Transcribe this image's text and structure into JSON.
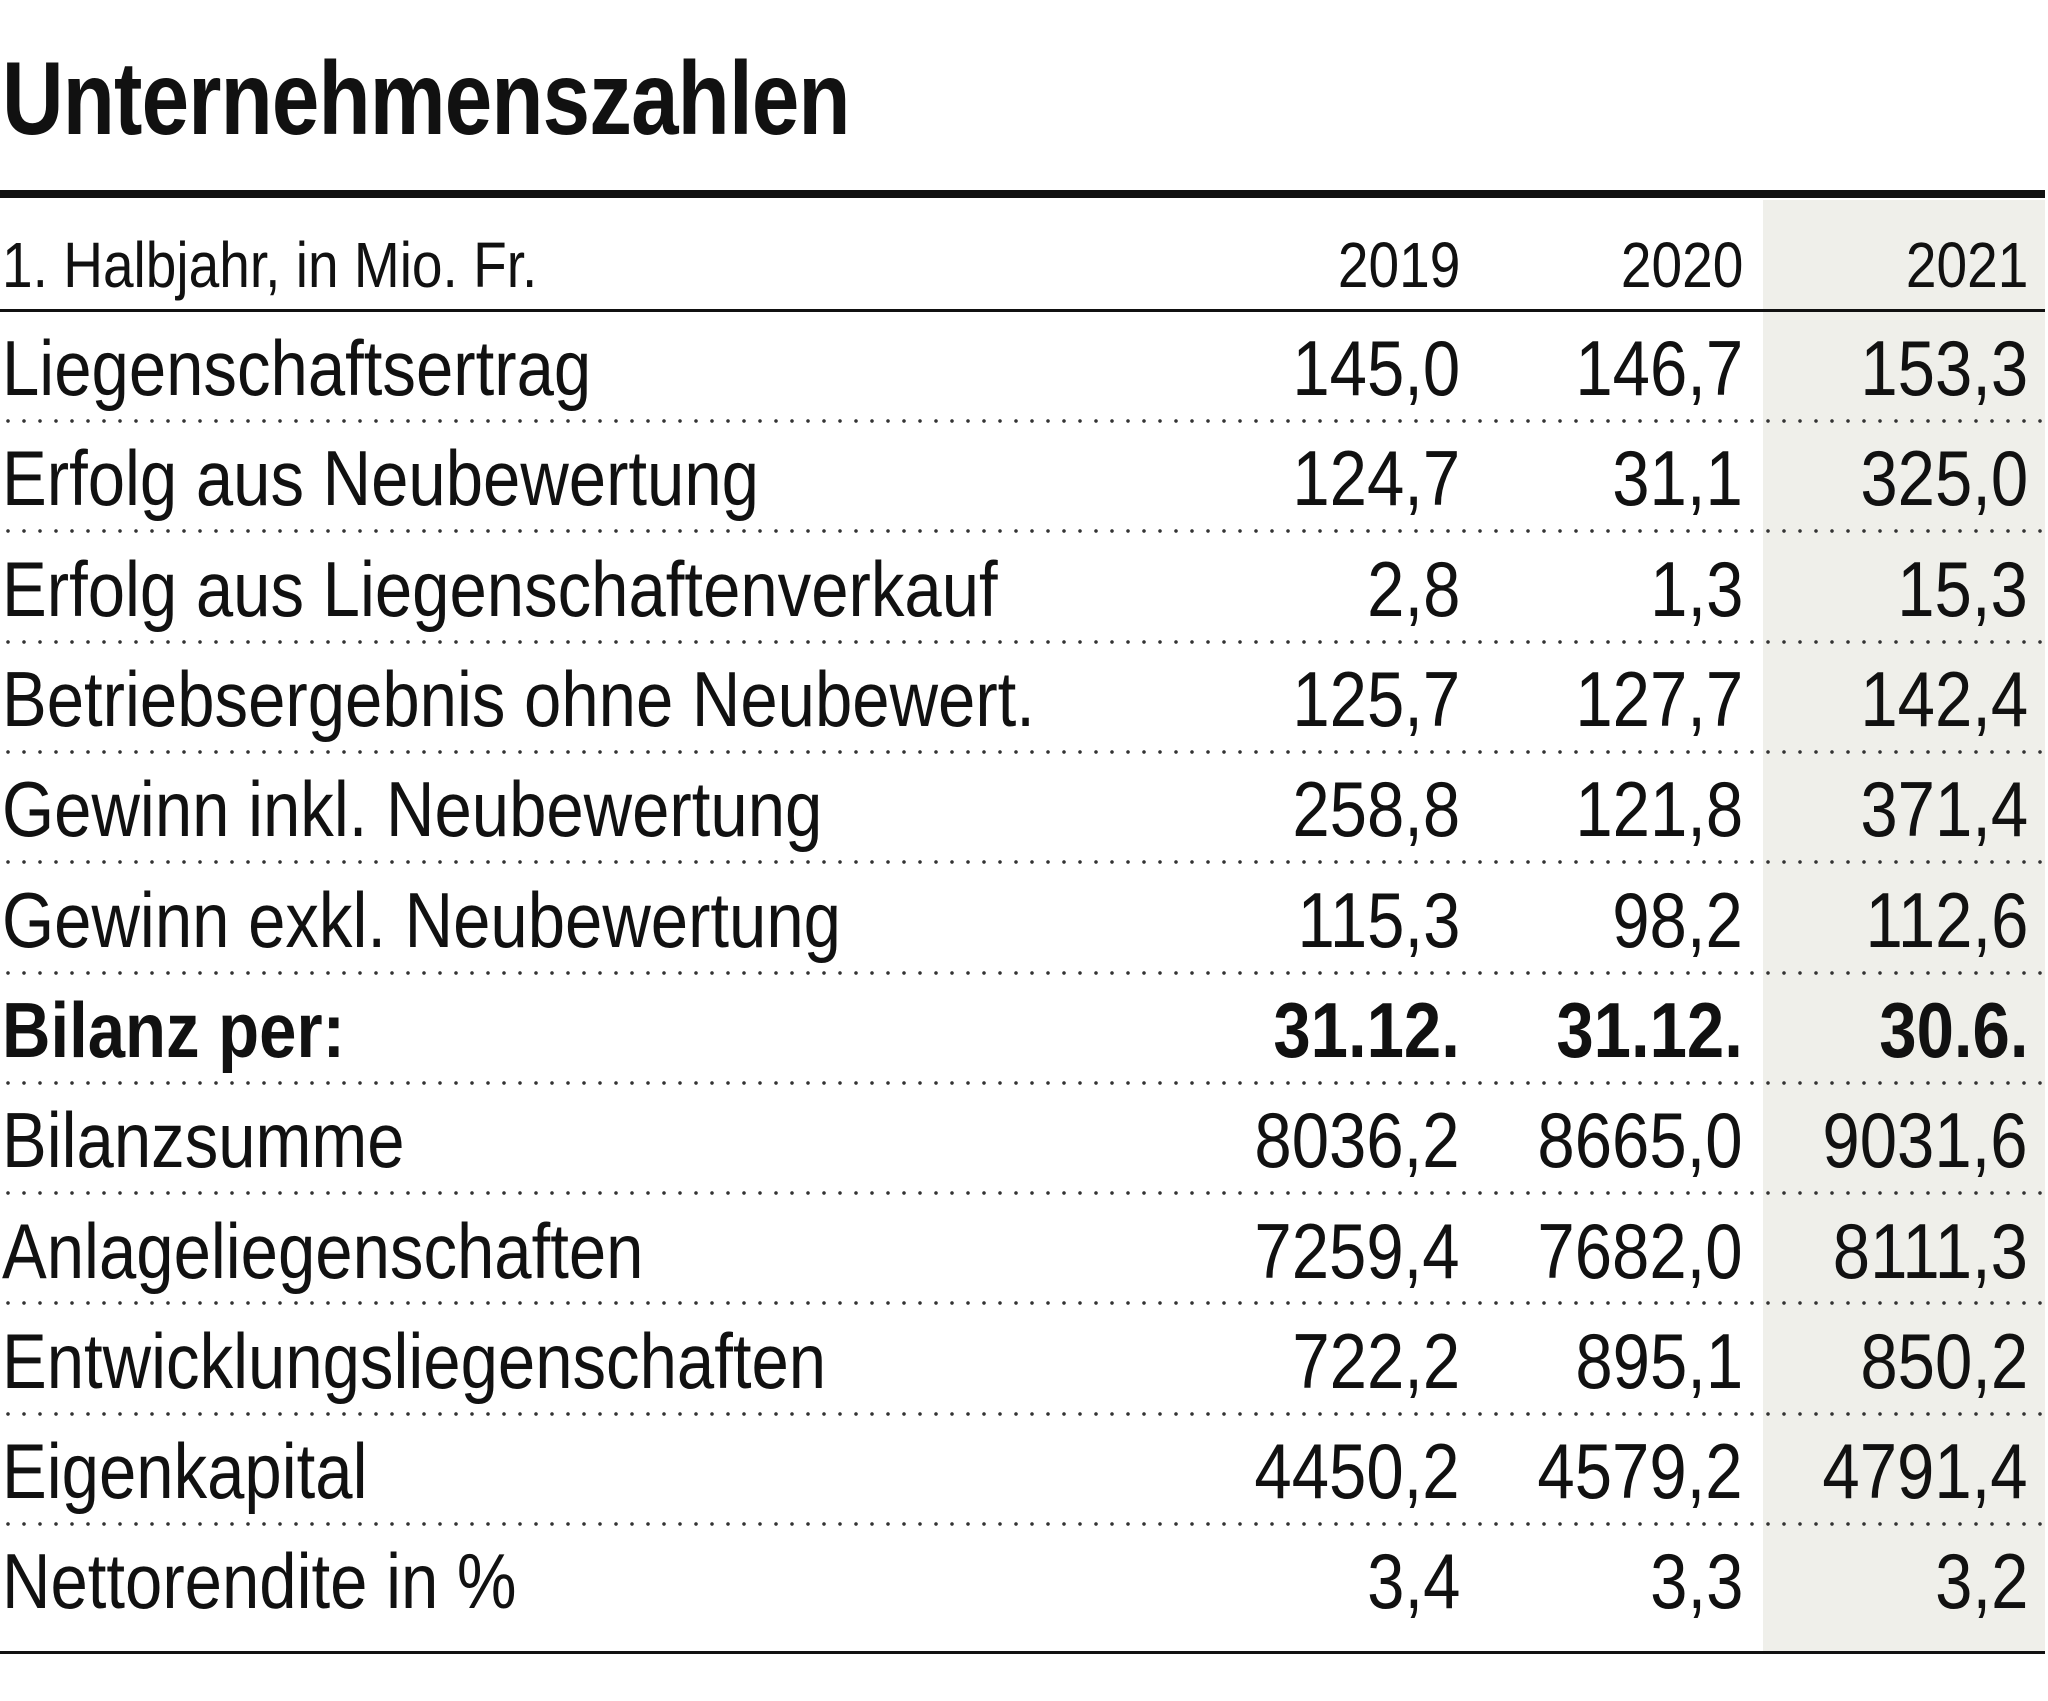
{
  "title": "Unternehmenszahlen",
  "table": {
    "header": [
      "1. Halbjahr, in Mio. Fr.",
      "2019",
      "2020",
      "2021"
    ],
    "rows": [
      [
        "Liegenschaftsertrag",
        "145,0",
        "146,7",
        "153,3"
      ],
      [
        "Erfolg aus Neubewertung",
        "124,7",
        "31,1",
        "325,0"
      ],
      [
        "Erfolg aus Liegenschaftenverkauf",
        "2,8",
        "1,3",
        "15,3"
      ],
      [
        "Betriebsergebnis ohne Neubewert.",
        "125,7",
        "127,7",
        "142,4"
      ],
      [
        "Gewinn inkl. Neubewertung",
        "258,8",
        "121,8",
        "371,4"
      ],
      [
        "Gewinn exkl. Neubewertung",
        "115,3",
        "98,2",
        "112,6"
      ]
    ],
    "balance_header": [
      "Bilanz per:",
      "31.12.",
      "31.12.",
      "30.6."
    ],
    "balance_rows": [
      [
        "Bilanzsumme",
        "8036,2",
        "8665,0",
        "9031,6"
      ],
      [
        "Anlageliegenschaften",
        "7259,4",
        "7682,0",
        "8111,3"
      ],
      [
        "Entwicklungsliegenschaften",
        "722,2",
        "895,1",
        "850,2"
      ],
      [
        "Eigenkapital",
        "4450,2",
        "4579,2",
        "4791,4"
      ],
      [
        "Nettorendite in %",
        "3,4",
        "3,3",
        "3,2"
      ]
    ]
  }
}
